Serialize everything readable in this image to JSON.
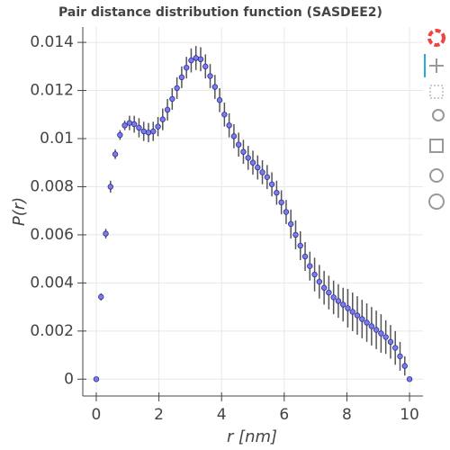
{
  "chart_data": {
    "type": "scatter",
    "title": "Pair distance distribution function (SASDEE2)",
    "x_label": "r [nm]",
    "y_label": "P(r)",
    "x": [
      0,
      0.152,
      0.303,
      0.455,
      0.606,
      0.758,
      0.909,
      1.061,
      1.212,
      1.364,
      1.515,
      1.667,
      1.818,
      1.97,
      2.121,
      2.273,
      2.424,
      2.576,
      2.727,
      2.879,
      3.03,
      3.182,
      3.333,
      3.485,
      3.636,
      3.788,
      3.939,
      4.091,
      4.242,
      4.394,
      4.545,
      4.697,
      4.848,
      5.0,
      5.152,
      5.303,
      5.455,
      5.606,
      5.758,
      5.909,
      6.061,
      6.212,
      6.364,
      6.515,
      6.667,
      6.818,
      6.97,
      7.121,
      7.273,
      7.424,
      7.576,
      7.727,
      7.879,
      8.03,
      8.182,
      8.333,
      8.485,
      8.636,
      8.788,
      8.939,
      9.091,
      9.242,
      9.394,
      9.545,
      9.697,
      9.848,
      10
    ],
    "values": [
      0,
      0.00342,
      0.00605,
      0.008,
      0.00935,
      0.01015,
      0.01055,
      0.01065,
      0.0106,
      0.01045,
      0.0103,
      0.01025,
      0.0103,
      0.0105,
      0.0108,
      0.0112,
      0.01165,
      0.0121,
      0.01255,
      0.01295,
      0.01325,
      0.01335,
      0.0133,
      0.013,
      0.0126,
      0.01215,
      0.0116,
      0.011,
      0.01055,
      0.0101,
      0.00975,
      0.00945,
      0.0092,
      0.009,
      0.0088,
      0.0086,
      0.0084,
      0.0081,
      0.00775,
      0.00735,
      0.00695,
      0.00645,
      0.006,
      0.00555,
      0.0051,
      0.0047,
      0.00435,
      0.00405,
      0.0038,
      0.0036,
      0.0034,
      0.00325,
      0.0031,
      0.00295,
      0.0028,
      0.00265,
      0.0025,
      0.00235,
      0.0022,
      0.00205,
      0.0019,
      0.00175,
      0.00155,
      0.0013,
      0.00095,
      0.00055,
      0
    ],
    "errors": [
      0,
      0.00015,
      0.0002,
      0.00025,
      0.0002,
      0.0002,
      0.0002,
      0.0003,
      0.00035,
      0.0004,
      0.0004,
      0.0004,
      0.0004,
      0.0004,
      0.00045,
      0.00045,
      0.00045,
      0.00045,
      0.00045,
      0.00045,
      0.0005,
      0.0005,
      0.0005,
      0.0005,
      0.0005,
      0.0005,
      0.0005,
      0.0005,
      0.0005,
      0.0005,
      0.0005,
      0.0005,
      0.0005,
      0.0005,
      0.0005,
      0.0005,
      0.0005,
      0.0005,
      0.0005,
      0.0005,
      0.0005,
      0.0006,
      0.0006,
      0.0006,
      0.0006,
      0.0006,
      0.0007,
      0.0007,
      0.0007,
      0.0007,
      0.0007,
      0.0007,
      0.0007,
      0.0008,
      0.0008,
      0.0008,
      0.0008,
      0.0008,
      0.0008,
      0.0008,
      0.0008,
      0.0007,
      0.0007,
      0.0007,
      0.0006,
      0.0004,
      0
    ],
    "color": "#7b7bf0",
    "error_color": "#555555",
    "xlim": [
      -0.43,
      10.43
    ],
    "ylim": [
      -0.0007,
      0.01464
    ],
    "xticks": [
      0,
      2,
      4,
      6,
      8,
      10
    ],
    "yticks": [
      0,
      0.002,
      0.004,
      0.006,
      0.008,
      0.01,
      0.012,
      0.014
    ],
    "grid": true
  }
}
